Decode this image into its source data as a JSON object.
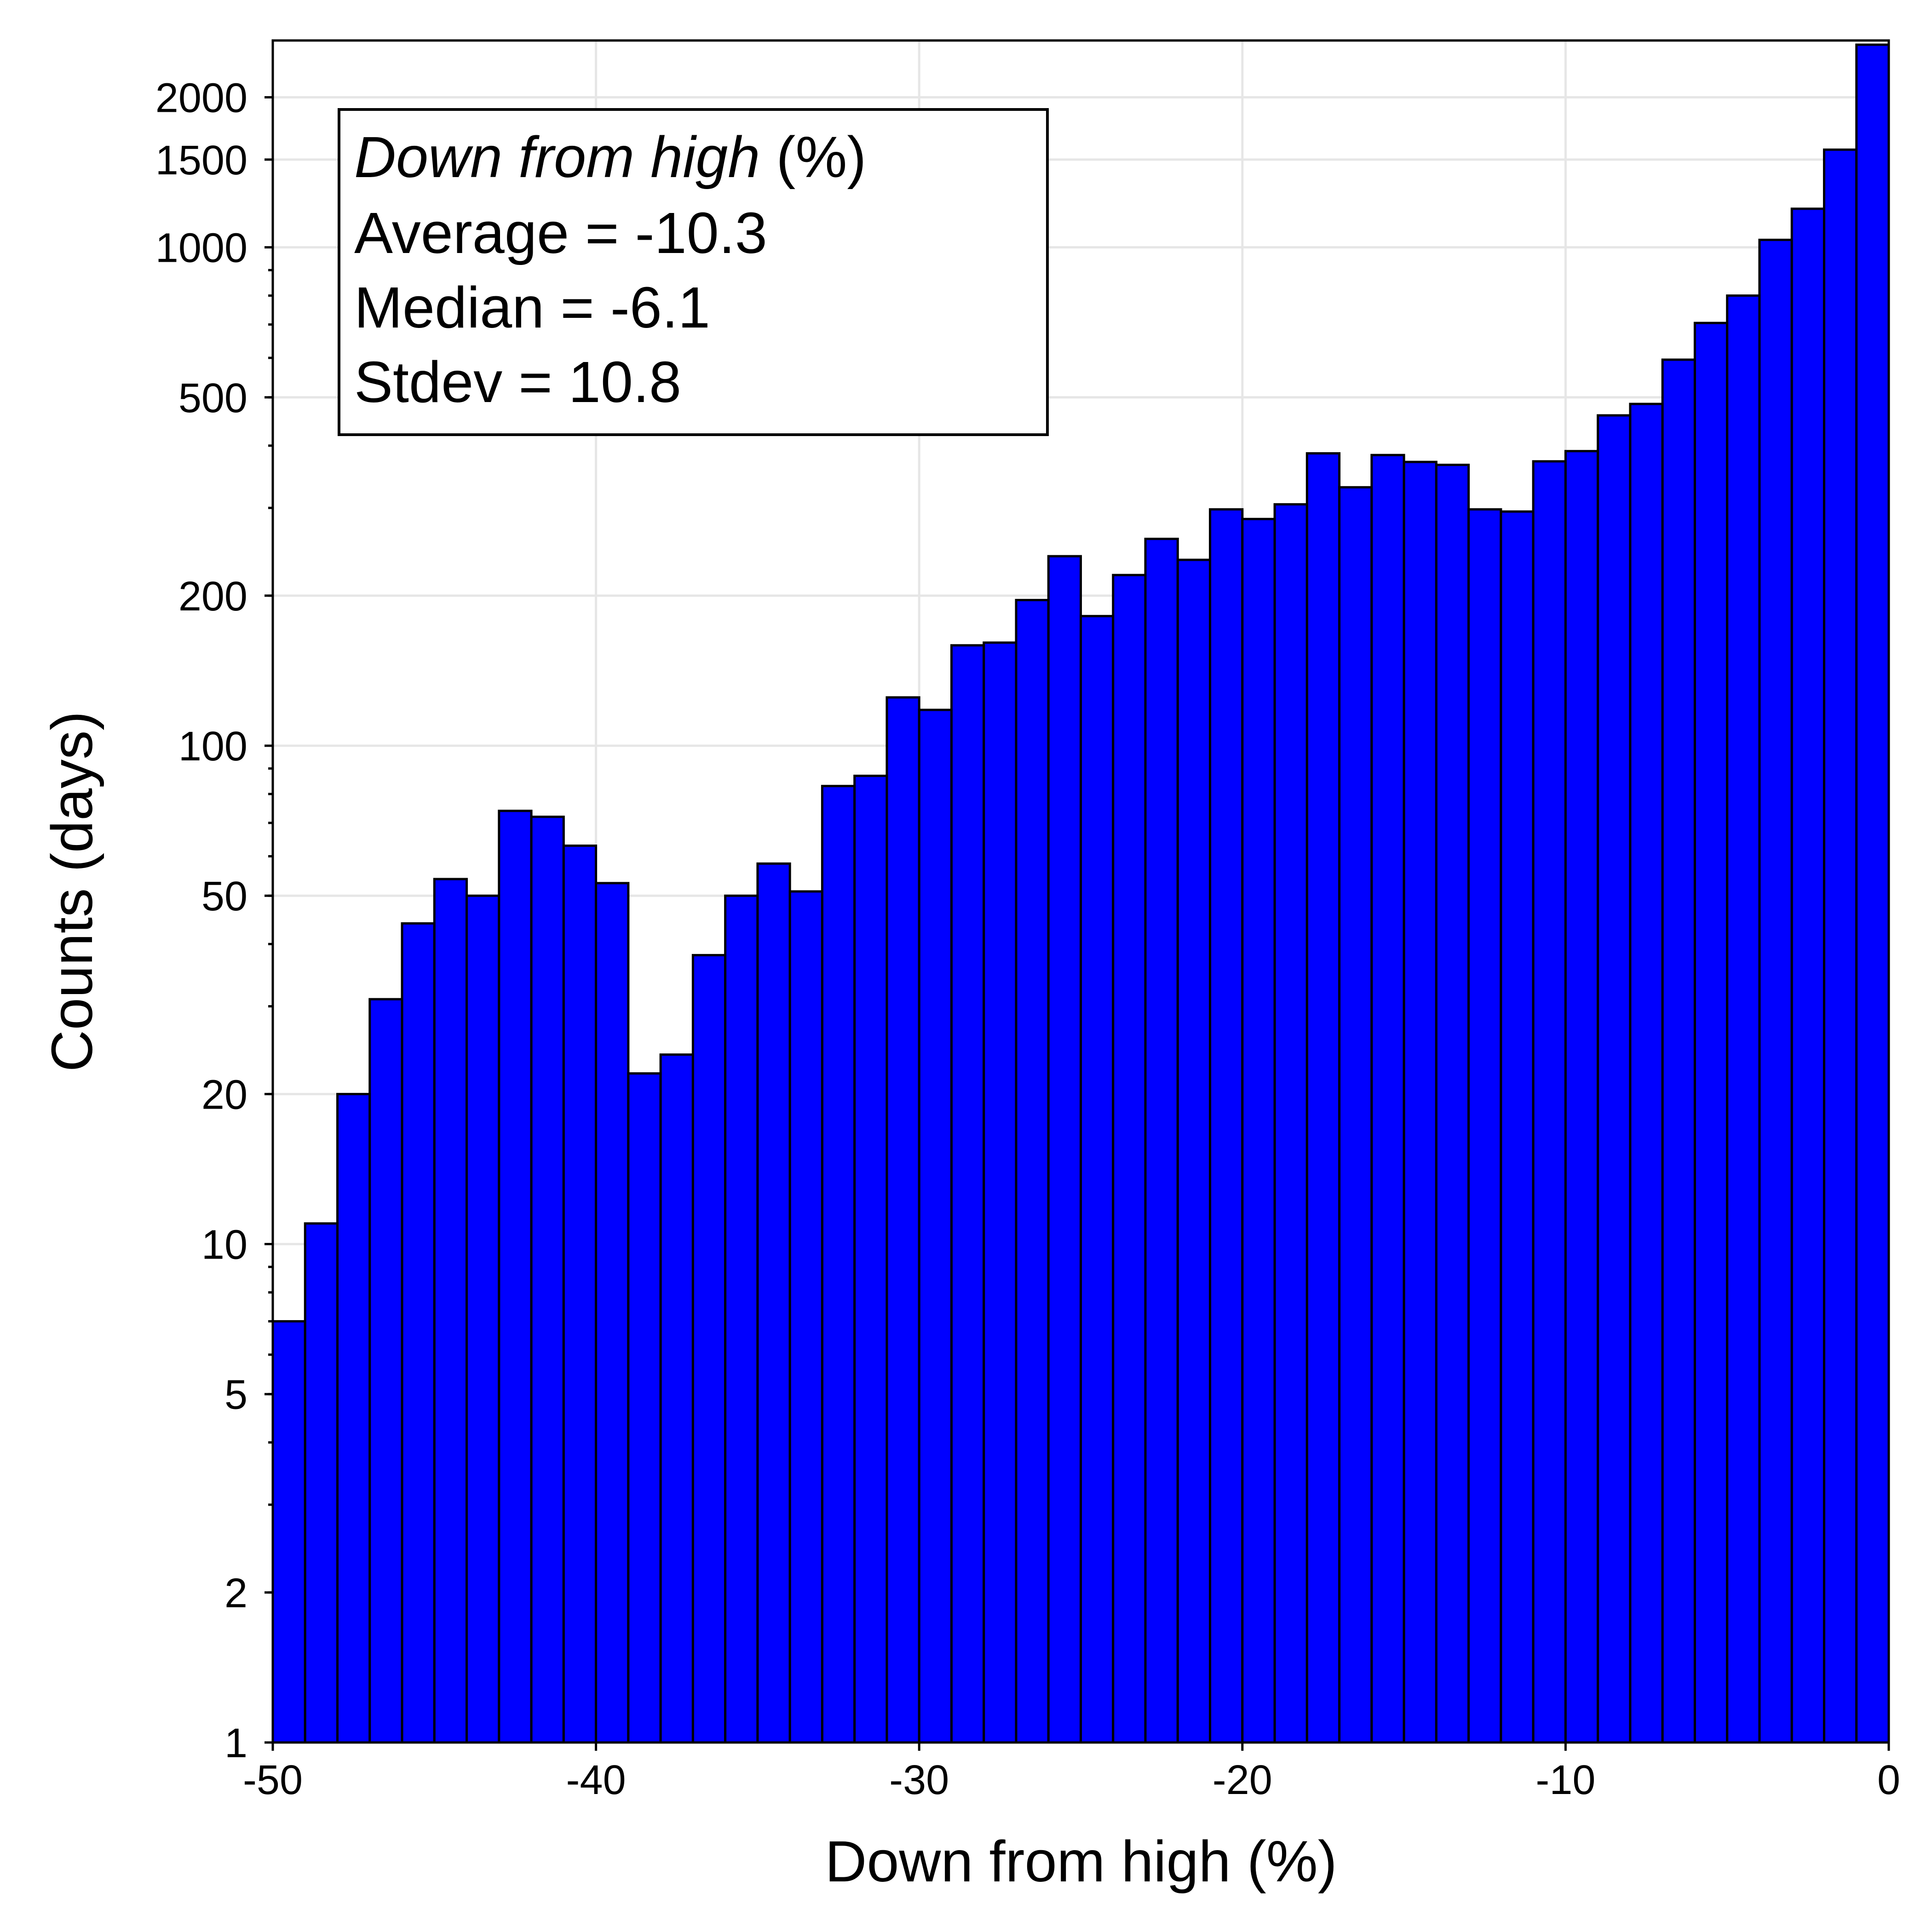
{
  "chart_data": {
    "type": "bar",
    "title": "",
    "xlabel": "Down from high (%)",
    "ylabel": "Counts (days)",
    "xlim": [
      -50,
      0
    ],
    "ylim": [
      1,
      2600
    ],
    "yscale": "log",
    "grid": true,
    "bar_color": "#0000ff",
    "bar_edge_color": "#000000",
    "bin_width": 1,
    "bin_left_edges": [
      -50,
      -49,
      -48,
      -47,
      -46,
      -45,
      -44,
      -43,
      -42,
      -41,
      -40,
      -39,
      -38,
      -37,
      -36,
      -35,
      -34,
      -33,
      -32,
      -31,
      -30,
      -29,
      -28,
      -27,
      -26,
      -25,
      -24,
      -23,
      -22,
      -21,
      -20,
      -19,
      -18,
      -17,
      -16,
      -15,
      -14,
      -13,
      -12,
      -11,
      -10,
      -9,
      -8,
      -7,
      -6,
      -5,
      -4,
      -3,
      -2,
      -1
    ],
    "values": [
      7,
      11,
      20,
      31,
      44,
      54,
      50,
      74,
      72,
      63,
      53,
      22,
      24,
      38,
      50,
      58,
      51,
      83,
      87,
      125,
      118,
      159,
      161,
      196,
      240,
      182,
      220,
      260,
      236,
      298,
      285,
      305,
      386,
      330,
      383,
      371,
      366,
      298,
      295,
      372,
      390,
      460,
      485,
      595,
      705,
      800,
      1035,
      1195,
      1570,
      2550
    ],
    "x_ticks": [
      "-50",
      "-40",
      "-30",
      "-20",
      "-10",
      "0"
    ],
    "x_tick_values": [
      -50,
      -40,
      -30,
      -20,
      -10,
      0
    ],
    "y_ticks": [
      "1",
      "2",
      "5",
      "10",
      "20",
      "50",
      "100",
      "200",
      "500",
      "1000",
      "1500",
      "2000"
    ],
    "y_tick_values": [
      1,
      2,
      5,
      10,
      20,
      50,
      100,
      200,
      500,
      1000,
      1500,
      2000
    ],
    "annotation": {
      "title_italic": "Down from high",
      "title_suffix": " (%)",
      "lines": [
        "Average = -10.3",
        "Median = -6.1",
        "Stdev = 10.8"
      ],
      "placement": "top-left"
    }
  }
}
